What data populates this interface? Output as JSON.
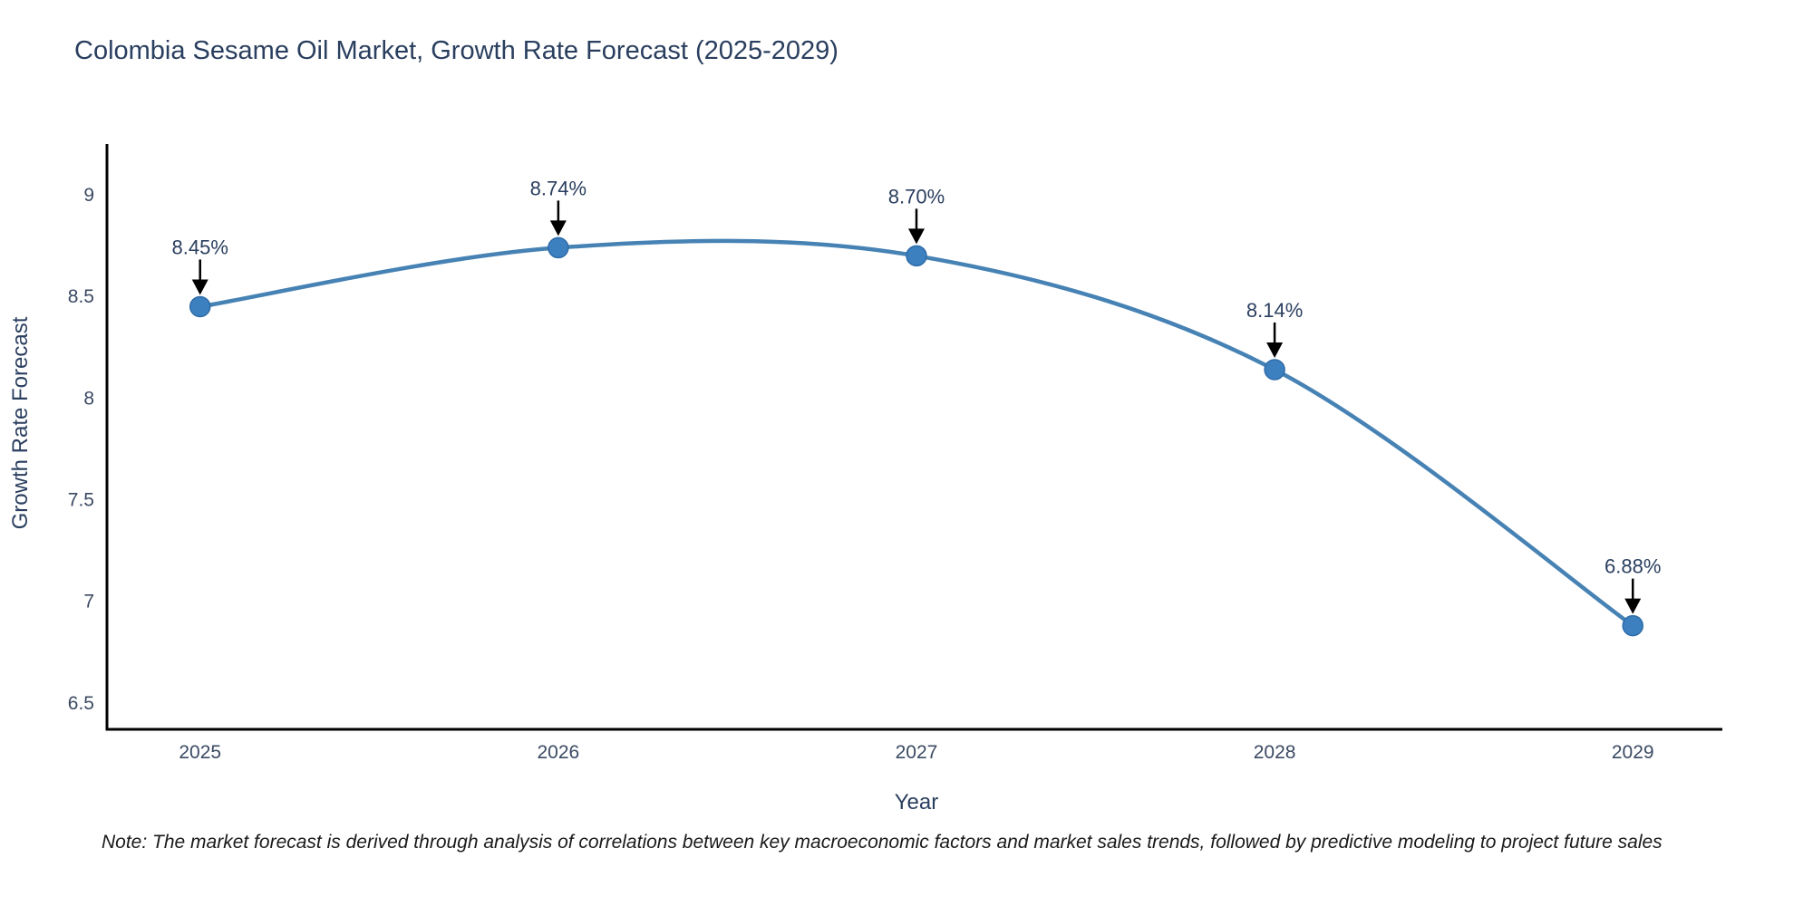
{
  "title": "Colombia Sesame Oil Market, Growth Rate Forecast (2025-2029)",
  "footnote": "Note: The market forecast is derived through analysis of correlations between key macroeconomic factors and market sales trends, followed by predictive modeling to project future sales",
  "chart_data": {
    "type": "line",
    "title": "Colombia Sesame Oil Market, Growth Rate Forecast (2025-2029)",
    "x": [
      2025,
      2026,
      2027,
      2028,
      2029
    ],
    "values": [
      8.45,
      8.74,
      8.7,
      8.14,
      6.88
    ],
    "point_labels": [
      "8.45%",
      "8.74%",
      "8.70%",
      "8.14%",
      "6.88%"
    ],
    "xlabel": "Year",
    "ylabel": "Growth Rate Forecast",
    "xticks": [
      2025,
      2026,
      2027,
      2028,
      2029
    ],
    "yticks": [
      6.5,
      7,
      7.5,
      8,
      8.5,
      9
    ],
    "xlim": [
      2024.74,
      2029.25
    ],
    "ylim": [
      6.37,
      9.25
    ],
    "grid": false,
    "legend": "none",
    "line_shape": "spline",
    "colors": {
      "line": "#4682b4",
      "marker_fill": "#3c80c0",
      "marker_stroke": "#2e6ca8",
      "axis": "#000000",
      "tick_text": "#3b4a63",
      "title_text": "#2a3f5f",
      "annotation_text": "#2a3f5f",
      "annotation_arrow": "#000000",
      "note_text": "#1a1a1a"
    }
  }
}
